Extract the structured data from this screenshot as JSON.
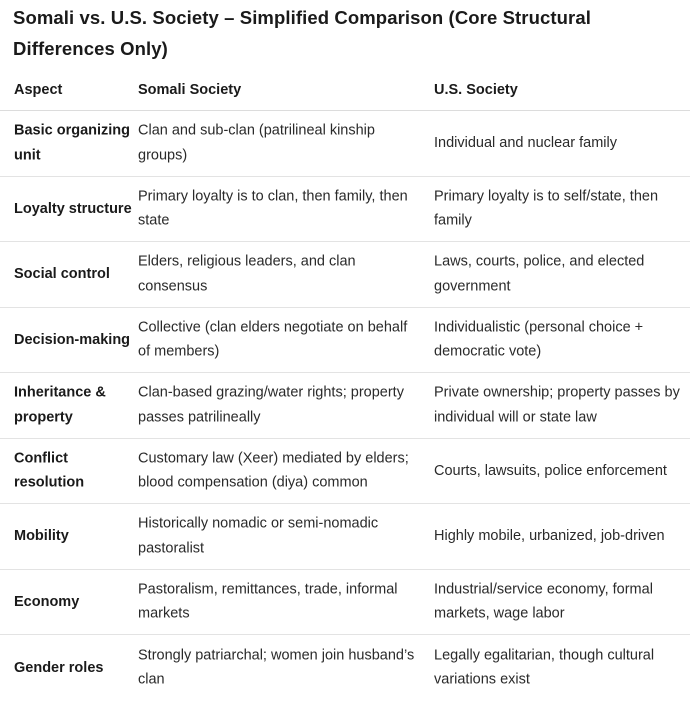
{
  "title": "Somali vs. U.S. Society – Simplified Comparison (Core Structural Differences Only)",
  "table": {
    "headers": [
      "Aspect",
      "Somali Society",
      "U.S. Society"
    ],
    "rows": [
      {
        "aspect": "Basic organizing unit",
        "somali": "Clan and sub-clan (patrilineal kinship groups)",
        "us": "Individual and nuclear family"
      },
      {
        "aspect": "Loyalty structure",
        "somali": "Primary loyalty is to clan, then family, then state",
        "us": "Primary loyalty is to self/state, then family"
      },
      {
        "aspect": "Social control",
        "somali": "Elders, religious leaders, and clan consensus",
        "us": "Laws, courts, police, and elected government"
      },
      {
        "aspect": "Decision-making",
        "somali": "Collective (clan elders negotiate on behalf of members)",
        "us": "Individualistic (personal choice + democratic vote)"
      },
      {
        "aspect": "Inheritance & property",
        "somali": "Clan-based grazing/water rights; property passes patrilineally",
        "us": "Private ownership; property passes by individual will or state law"
      },
      {
        "aspect": "Conflict resolution",
        "somali": "Customary law (Xeer) mediated by elders; blood compensation (diya) common",
        "us": "Courts, lawsuits, police enforcement"
      },
      {
        "aspect": "Mobility",
        "somali": "Historically nomadic or semi-nomadic pastoralist",
        "us": "Highly mobile, urbanized, job-driven"
      },
      {
        "aspect": "Economy",
        "somali": "Pastoralism, remittances, trade, informal markets",
        "us": "Industrial/service economy, formal markets, wage labor"
      },
      {
        "aspect": "Gender roles",
        "somali": "Strongly patriarchal; women join husband’s clan",
        "us": "Legally egalitarian, though cultural variations exist"
      }
    ]
  }
}
